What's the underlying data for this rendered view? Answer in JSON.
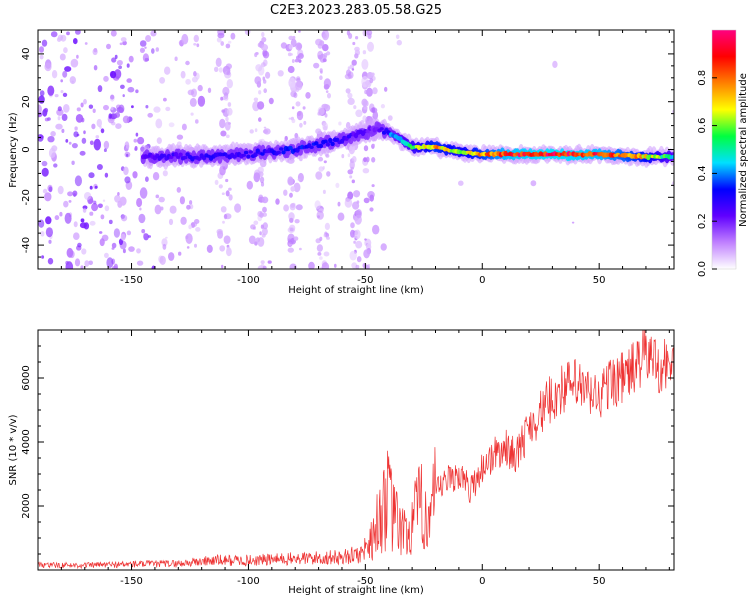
{
  "figure_title": "C2E3.2023.283.05.58.G25",
  "chart_data": [
    {
      "type": "heatmap",
      "title": "C2E3.2023.283.05.58.G25",
      "xlabel": "Height of straight line (km)",
      "ylabel": "Frequency (Hz)",
      "xlim": [
        -190,
        82
      ],
      "ylim": [
        -50,
        50
      ],
      "xticks": [
        -150,
        -100,
        -50,
        0,
        50
      ],
      "yticks": [
        -40,
        -20,
        0,
        20,
        40
      ],
      "colorbar": {
        "label": "Normalized spectral amplitude",
        "range": [
          0.0,
          1.0
        ],
        "ticks": [
          0.0,
          0.2,
          0.4,
          0.6,
          0.8
        ],
        "colormap": [
          "#ffffff",
          "#c080ff",
          "#6000ff",
          "#0000ff",
          "#00e0ff",
          "#00ff40",
          "#ffff00",
          "#ff8000",
          "#ff0000",
          "#ff0080"
        ]
      },
      "ridge": {
        "description": "Narrowband signal track",
        "x": [
          -145,
          -120,
          -100,
          -80,
          -60,
          -45,
          -38,
          -30,
          -20,
          -10,
          0,
          10,
          30,
          50,
          70,
          82
        ],
        "frequency": [
          -3,
          -3,
          -2,
          0,
          4,
          9,
          6,
          1,
          1,
          -1,
          -2,
          -2,
          -2,
          -2,
          -3,
          -3
        ],
        "amplitude": [
          0.25,
          0.3,
          0.3,
          0.35,
          0.3,
          0.2,
          0.45,
          0.6,
          0.8,
          0.7,
          0.8,
          0.95,
          1.0,
          0.95,
          0.75,
          0.5
        ]
      }
    },
    {
      "type": "line",
      "title": "",
      "xlabel": "Height of straight line (km)",
      "ylabel": "SNR (10 * v/v)",
      "xlim": [
        -190,
        82
      ],
      "ylim": [
        0,
        7500
      ],
      "xticks": [
        -150,
        -100,
        -50,
        0,
        50
      ],
      "yticks": [
        2000,
        4000,
        6000
      ],
      "series": [
        {
          "name": "SNR",
          "color": "#ee3333",
          "x": [
            -190,
            -170,
            -150,
            -130,
            -115,
            -100,
            -80,
            -60,
            -52,
            -48,
            -45,
            -42,
            -40,
            -38,
            -35,
            -32,
            -30,
            -28,
            -25,
            -22,
            -20,
            -15,
            -10,
            -5,
            0,
            5,
            10,
            15,
            20,
            25,
            30,
            35,
            40,
            45,
            50,
            55,
            60,
            65,
            70,
            75,
            82
          ],
          "y": [
            150,
            150,
            180,
            200,
            300,
            300,
            350,
            400,
            500,
            900,
            1400,
            2100,
            2200,
            1600,
            1300,
            1000,
            1500,
            1800,
            2000,
            1600,
            2400,
            2800,
            3000,
            2500,
            3200,
            3600,
            3800,
            3600,
            4500,
            4900,
            5400,
            5700,
            5800,
            5500,
            5400,
            5900,
            6000,
            6300,
            6800,
            6400,
            6400
          ]
        }
      ]
    }
  ]
}
